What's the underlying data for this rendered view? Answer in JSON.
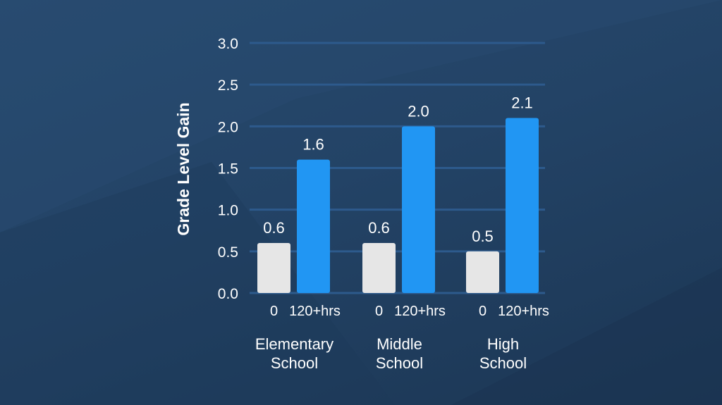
{
  "chart_data": {
    "type": "bar",
    "ylabel": "Grade Level Gain",
    "ylim": [
      0,
      3.0
    ],
    "yticks": [
      "0.0",
      "0.5",
      "1.0",
      "1.5",
      "2.0",
      "2.5",
      "3.0"
    ],
    "grid": true,
    "groups": [
      {
        "name": "Elementary School",
        "label_lines": [
          "Elementary",
          "School"
        ],
        "bars": [
          {
            "category": "0",
            "value": 0.6,
            "value_label": "0.6"
          },
          {
            "category": "120+hrs",
            "value": 1.6,
            "value_label": "1.6"
          }
        ]
      },
      {
        "name": "Middle School",
        "label_lines": [
          "Middle",
          "School"
        ],
        "bars": [
          {
            "category": "0",
            "value": 0.6,
            "value_label": "0.6"
          },
          {
            "category": "120+hrs",
            "value": 2.0,
            "value_label": "2.0"
          }
        ]
      },
      {
        "name": "High School",
        "label_lines": [
          "High",
          "School"
        ],
        "bars": [
          {
            "category": "0",
            "value": 0.5,
            "value_label": "0.5"
          },
          {
            "category": "120+hrs",
            "value": 2.1,
            "value_label": "2.1"
          }
        ]
      }
    ],
    "colors": {
      "0": "#e6e6e6",
      "120+hrs": "#2196f3",
      "grid": "#2d5a8c",
      "text": "#ffffff"
    }
  }
}
